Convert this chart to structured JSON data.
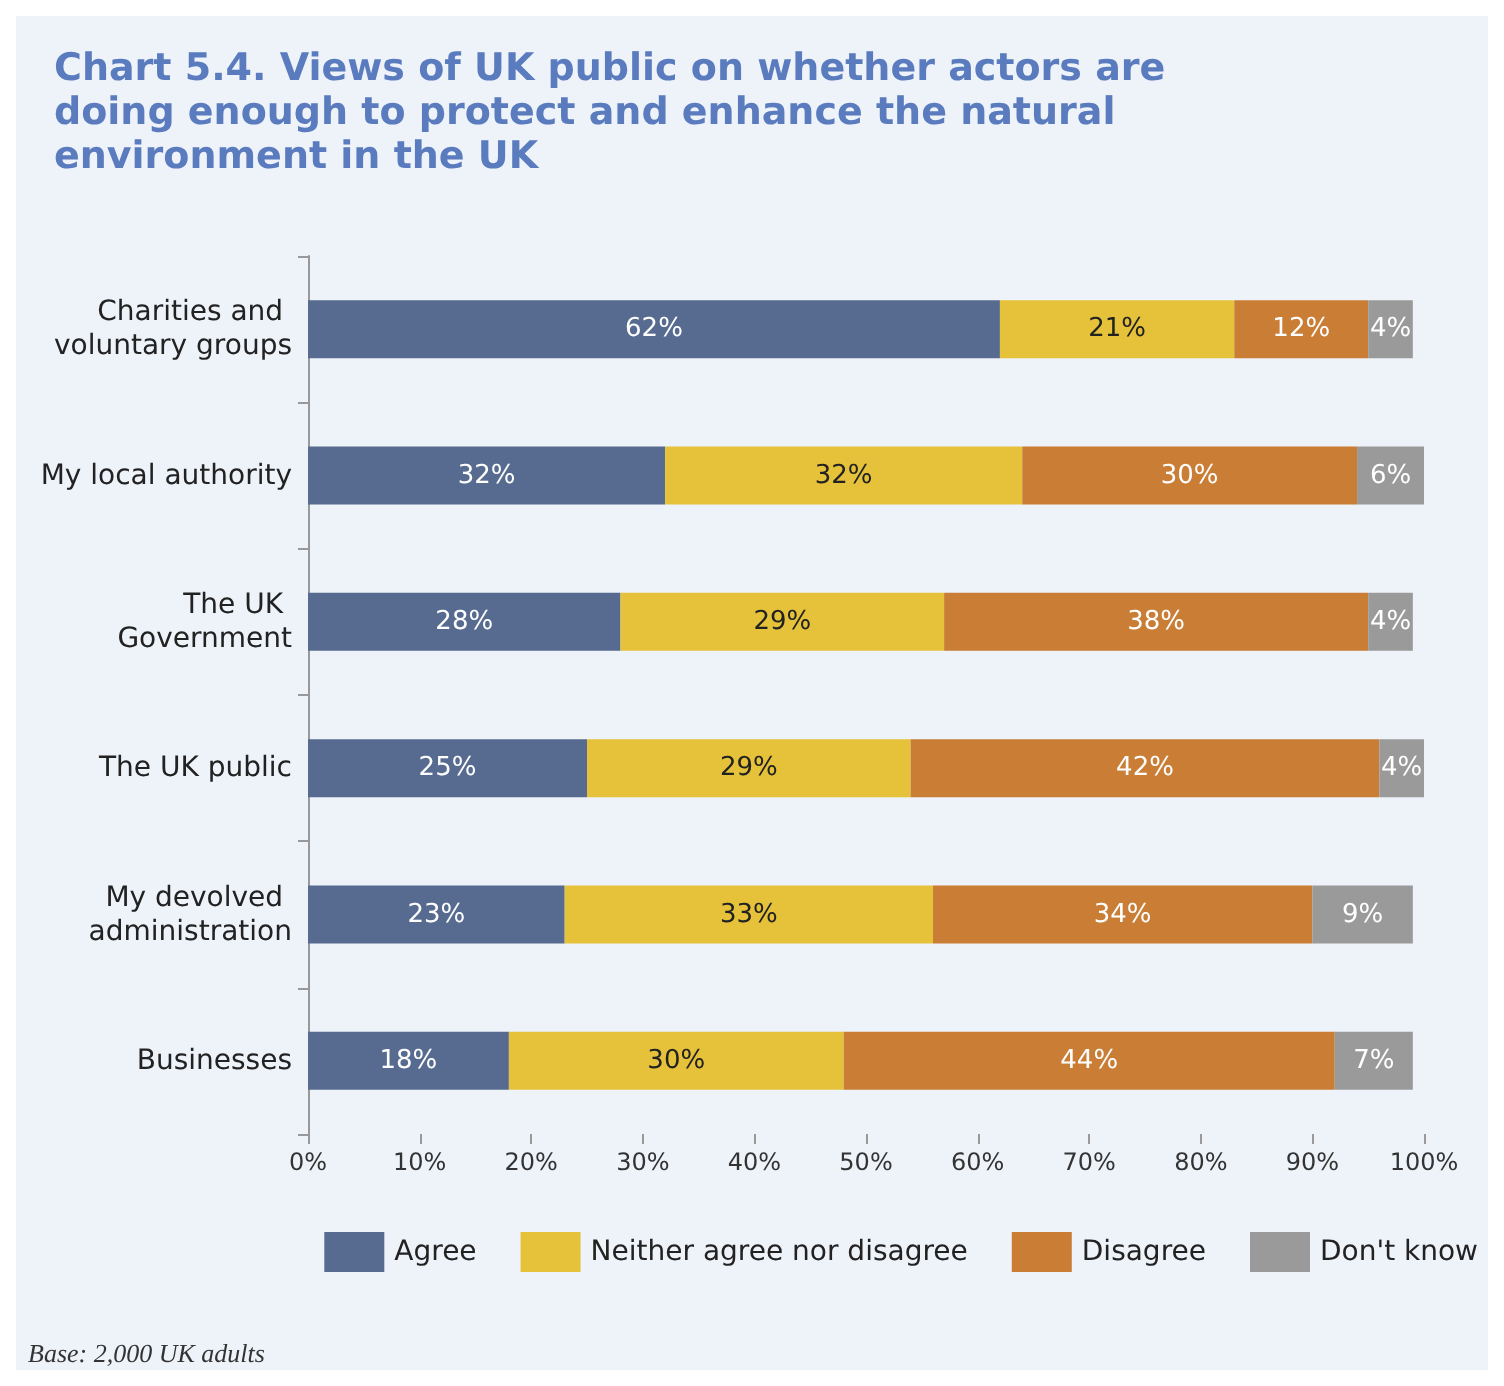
{
  "chart_data": {
    "type": "bar",
    "orientation": "horizontal",
    "stacked": true,
    "title": "Chart 5.4. Views of UK public on whether actors are doing enough to protect and enhance the natural environment in the UK",
    "categories": [
      "Charities and voluntary groups",
      "My local authority",
      "The UK Government",
      "The UK public",
      "My devolved administration",
      "Businesses"
    ],
    "series": [
      {
        "name": "Agree",
        "color": "#566b8f",
        "values": [
          62,
          32,
          28,
          25,
          23,
          18
        ],
        "value_labels": [
          "62%",
          "32%",
          "28%",
          "25%",
          "23%",
          "18%"
        ]
      },
      {
        "name": "Neither agree nor disagree",
        "color": "#e6c23a",
        "values": [
          21,
          32,
          29,
          29,
          33,
          30
        ],
        "value_labels": [
          "21%",
          "32%",
          "29%",
          "29%",
          "33%",
          "30%"
        ]
      },
      {
        "name": "Disagree",
        "color": "#c97d35",
        "values": [
          12,
          30,
          38,
          42,
          34,
          44
        ],
        "value_labels": [
          "12%",
          "30%",
          "38%",
          "42%",
          "34%",
          "44%"
        ]
      },
      {
        "name": "Don't know",
        "color": "#9a9a9a",
        "values": [
          4,
          6,
          4,
          4,
          9,
          7
        ],
        "value_labels": [
          "4%",
          "6%",
          "4%",
          "4%",
          "9%",
          "7%"
        ]
      }
    ],
    "xlim": [
      0,
      100
    ],
    "xticks": [
      {
        "value": 0,
        "label": "0%"
      },
      {
        "value": 10,
        "label": "10%"
      },
      {
        "value": 20,
        "label": "20%"
      },
      {
        "value": 30,
        "label": "30%"
      },
      {
        "value": 40,
        "label": "40%"
      },
      {
        "value": 50,
        "label": "50%"
      },
      {
        "value": 60,
        "label": "60%"
      },
      {
        "value": 70,
        "label": "70%"
      },
      {
        "value": 80,
        "label": "80%"
      },
      {
        "value": 90,
        "label": "90%"
      },
      {
        "value": 100,
        "label": "100%"
      }
    ],
    "grid": false,
    "legend": "bottom",
    "annotations": [
      "Base: 2,000 UK adults"
    ]
  }
}
